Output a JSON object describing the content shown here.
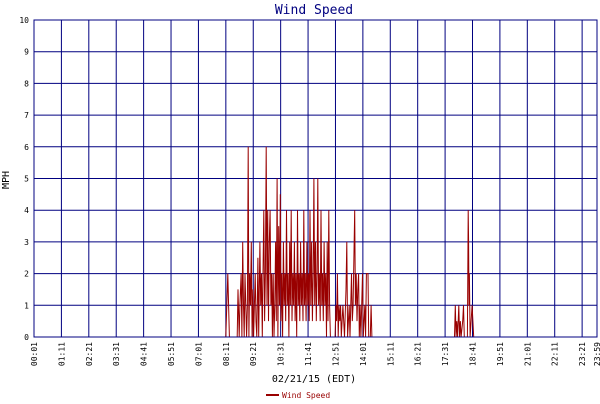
{
  "chart_data": {
    "type": "line",
    "title": "Wind Speed",
    "xlabel": "02/21/15 (EDT)",
    "ylabel": "MPH",
    "ylim": [
      0,
      10
    ],
    "xlim": [
      "00:01",
      "23:59"
    ],
    "grid": true,
    "legend_position": "bottom-center",
    "yticks": [
      "0",
      "1",
      "2",
      "3",
      "4",
      "5",
      "6",
      "7",
      "8",
      "9",
      "10"
    ],
    "xticks": [
      "00:01",
      "01:11",
      "02:21",
      "03:31",
      "04:41",
      "05:51",
      "07:01",
      "08:11",
      "09:21",
      "10:31",
      "11:41",
      "12:51",
      "14:01",
      "15:11",
      "16:21",
      "17:31",
      "18:41",
      "19:51",
      "21:01",
      "22:11",
      "23:21",
      "23:59"
    ],
    "series": [
      {
        "name": "Wind Speed",
        "color": "#990000",
        "points": [
          [
            "00:01",
            0
          ],
          [
            "08:11",
            0
          ],
          [
            "08:16",
            2
          ],
          [
            "08:20",
            0
          ],
          [
            "08:40",
            0
          ],
          [
            "08:42",
            1.5
          ],
          [
            "08:45",
            0
          ],
          [
            "08:47",
            1
          ],
          [
            "08:50",
            2
          ],
          [
            "08:52",
            0
          ],
          [
            "08:54",
            3
          ],
          [
            "08:56",
            1
          ],
          [
            "08:58",
            0
          ],
          [
            "09:00",
            2
          ],
          [
            "09:02",
            1
          ],
          [
            "09:04",
            0
          ],
          [
            "09:06",
            1
          ],
          [
            "09:08",
            6
          ],
          [
            "09:10",
            0
          ],
          [
            "09:12",
            2
          ],
          [
            "09:14",
            1
          ],
          [
            "09:16",
            3
          ],
          [
            "09:18",
            0
          ],
          [
            "09:20",
            1.5
          ],
          [
            "09:22",
            0
          ],
          [
            "09:26",
            2
          ],
          [
            "09:28",
            0.5
          ],
          [
            "09:30",
            0
          ],
          [
            "09:33",
            2.5
          ],
          [
            "09:35",
            0
          ],
          [
            "09:38",
            3
          ],
          [
            "09:40",
            1
          ],
          [
            "09:42",
            2
          ],
          [
            "09:44",
            0
          ],
          [
            "09:46",
            2
          ],
          [
            "09:48",
            4
          ],
          [
            "09:50",
            0.5
          ],
          [
            "09:52",
            2
          ],
          [
            "09:54",
            6
          ],
          [
            "09:56",
            1
          ],
          [
            "09:58",
            4
          ],
          [
            "10:00",
            0.5
          ],
          [
            "10:02",
            3
          ],
          [
            "10:04",
            4
          ],
          [
            "10:06",
            1
          ],
          [
            "10:08",
            2
          ],
          [
            "10:10",
            0
          ],
          [
            "10:12",
            2
          ],
          [
            "10:14",
            0
          ],
          [
            "10:16",
            1
          ],
          [
            "10:18",
            3
          ],
          [
            "10:20",
            0.5
          ],
          [
            "10:22",
            5
          ],
          [
            "10:24",
            0
          ],
          [
            "10:26",
            3.5
          ],
          [
            "10:28",
            1
          ],
          [
            "10:30",
            4.5
          ],
          [
            "10:32",
            0.5
          ],
          [
            "10:34",
            2
          ],
          [
            "10:36",
            0
          ],
          [
            "10:38",
            3
          ],
          [
            "10:40",
            1
          ],
          [
            "10:42",
            2
          ],
          [
            "10:44",
            0.5
          ],
          [
            "10:46",
            4
          ],
          [
            "10:48",
            1
          ],
          [
            "10:50",
            2
          ],
          [
            "10:52",
            0
          ],
          [
            "10:54",
            3
          ],
          [
            "10:56",
            1
          ],
          [
            "10:58",
            4
          ],
          [
            "11:00",
            0.5
          ],
          [
            "11:02",
            2
          ],
          [
            "11:04",
            1
          ],
          [
            "11:06",
            3
          ],
          [
            "11:08",
            0.5
          ],
          [
            "11:10",
            2
          ],
          [
            "11:12",
            0
          ],
          [
            "11:14",
            4
          ],
          [
            "11:16",
            1
          ],
          [
            "11:18",
            2
          ],
          [
            "11:20",
            0.5
          ],
          [
            "11:22",
            3
          ],
          [
            "11:24",
            1
          ],
          [
            "11:26",
            2
          ],
          [
            "11:28",
            0.5
          ],
          [
            "11:30",
            4
          ],
          [
            "11:32",
            1
          ],
          [
            "11:34",
            2
          ],
          [
            "11:36",
            0.5
          ],
          [
            "11:38",
            3
          ],
          [
            "11:40",
            1
          ],
          [
            "11:42",
            2
          ],
          [
            "11:44",
            0.5
          ],
          [
            "11:46",
            4
          ],
          [
            "11:48",
            1
          ],
          [
            "11:50",
            3
          ],
          [
            "11:52",
            0.5
          ],
          [
            "11:54",
            2
          ],
          [
            "11:56",
            5
          ],
          [
            "11:58",
            1
          ],
          [
            "12:00",
            3
          ],
          [
            "12:02",
            0.5
          ],
          [
            "12:04",
            2
          ],
          [
            "12:06",
            5
          ],
          [
            "12:08",
            1
          ],
          [
            "12:10",
            2
          ],
          [
            "12:12",
            0.5
          ],
          [
            "12:14",
            4
          ],
          [
            "12:16",
            1
          ],
          [
            "12:18",
            2
          ],
          [
            "12:20",
            0.5
          ],
          [
            "12:22",
            3
          ],
          [
            "12:24",
            1
          ],
          [
            "12:26",
            2
          ],
          [
            "12:28",
            0
          ],
          [
            "12:30",
            3
          ],
          [
            "12:32",
            0.5
          ],
          [
            "12:34",
            4
          ],
          [
            "12:36",
            1
          ],
          [
            "12:38",
            0
          ],
          [
            "12:50",
            0
          ],
          [
            "12:52",
            1
          ],
          [
            "12:54",
            0.5
          ],
          [
            "12:56",
            2
          ],
          [
            "12:58",
            0
          ],
          [
            "13:00",
            1
          ],
          [
            "13:02",
            0.5
          ],
          [
            "13:04",
            1
          ],
          [
            "13:06",
            0
          ],
          [
            "13:10",
            1
          ],
          [
            "13:12",
            0.5
          ],
          [
            "13:14",
            0
          ],
          [
            "13:18",
            1.5
          ],
          [
            "13:20",
            3
          ],
          [
            "13:22",
            0
          ],
          [
            "13:26",
            1
          ],
          [
            "13:28",
            0
          ],
          [
            "13:32",
            2
          ],
          [
            "13:34",
            0.5
          ],
          [
            "13:36",
            1
          ],
          [
            "13:38",
            2.5
          ],
          [
            "13:40",
            4
          ],
          [
            "13:42",
            1
          ],
          [
            "13:44",
            2
          ],
          [
            "13:46",
            0.5
          ],
          [
            "13:48",
            1.5
          ],
          [
            "13:50",
            2
          ],
          [
            "13:52",
            0
          ],
          [
            "13:54",
            1
          ],
          [
            "13:56",
            0
          ],
          [
            "14:00",
            2
          ],
          [
            "14:02",
            0
          ],
          [
            "14:06",
            1
          ],
          [
            "14:08",
            0
          ],
          [
            "14:10",
            2
          ],
          [
            "14:14",
            2
          ],
          [
            "14:16",
            0
          ],
          [
            "14:20",
            0
          ],
          [
            "14:22",
            1
          ],
          [
            "14:24",
            0
          ],
          [
            "17:55",
            0
          ],
          [
            "17:57",
            1
          ],
          [
            "17:59",
            0
          ],
          [
            "18:01",
            0.5
          ],
          [
            "18:03",
            0
          ],
          [
            "18:06",
            1
          ],
          [
            "18:08",
            0
          ],
          [
            "18:10",
            0.5
          ],
          [
            "18:12",
            0
          ],
          [
            "18:16",
            0.5
          ],
          [
            "18:18",
            1
          ],
          [
            "18:20",
            0
          ],
          [
            "18:28",
            0
          ],
          [
            "18:30",
            4
          ],
          [
            "18:31",
            3
          ],
          [
            "18:32",
            1
          ],
          [
            "18:33",
            2
          ],
          [
            "18:35",
            0
          ],
          [
            "18:40",
            1
          ],
          [
            "18:42",
            0.5
          ],
          [
            "18:44",
            0
          ],
          [
            "23:59",
            0
          ]
        ]
      }
    ]
  }
}
